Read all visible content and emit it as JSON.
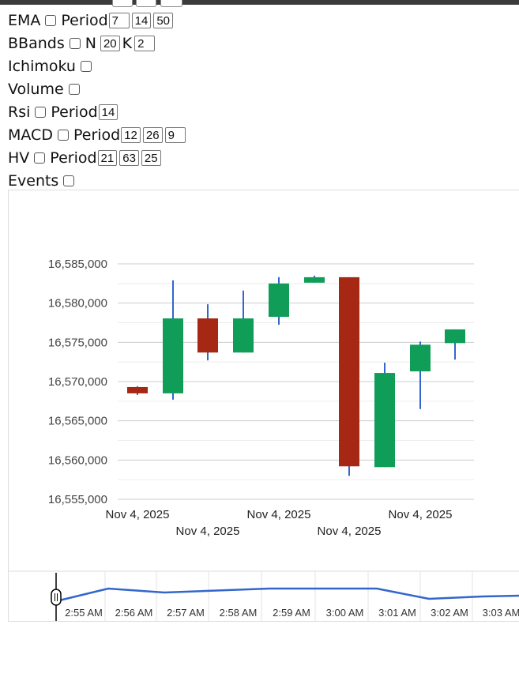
{
  "controls": [
    {
      "label": "EMA",
      "param_label": "Period",
      "values": [
        "7",
        "14",
        "50"
      ]
    },
    {
      "label": "BBands",
      "param_label": "N",
      "values": [
        "20"
      ],
      "param2_label": "K",
      "values2": [
        "2"
      ]
    },
    {
      "label": "Ichimoku"
    },
    {
      "label": "Volume"
    },
    {
      "label": "Rsi",
      "param_label": "Period",
      "values": [
        "14"
      ]
    },
    {
      "label": "MACD",
      "param_label": "Period",
      "values": [
        "12",
        "26",
        "9"
      ]
    },
    {
      "label": "HV",
      "param_label": "Period",
      "values": [
        "21",
        "63",
        "25"
      ]
    },
    {
      "label": "Events"
    }
  ],
  "chart_data": {
    "type": "candlestick",
    "ylim": [
      16555000,
      16585000
    ],
    "y_ticks": [
      "16,585,000",
      "16,580,000",
      "16,575,000",
      "16,570,000",
      "16,565,000",
      "16,560,000",
      "16,555,000"
    ],
    "x_tick_labels": [
      "Nov 4, 2025",
      "Nov 4, 2025",
      "Nov 4, 2025",
      "Nov 4, 2025",
      "Nov 4, 2025"
    ],
    "colors": {
      "up": "#0f9d58",
      "down": "#a52714",
      "wick": "#3366cc"
    },
    "candles": [
      {
        "o": 16569300,
        "h": 16569400,
        "l": 16568300,
        "c": 16568500
      },
      {
        "o": 16568500,
        "h": 16582900,
        "l": 16567700,
        "c": 16578050
      },
      {
        "o": 16578050,
        "h": 16579850,
        "l": 16572700,
        "c": 16573700
      },
      {
        "o": 16573700,
        "h": 16581600,
        "l": 16573700,
        "c": 16578050
      },
      {
        "o": 16578250,
        "h": 16583300,
        "l": 16577250,
        "c": 16582500
      },
      {
        "o": 16582600,
        "h": 16583500,
        "l": 16582600,
        "c": 16583300
      },
      {
        "o": 16583300,
        "h": 16583300,
        "l": 16558000,
        "c": 16559200
      },
      {
        "o": 16559100,
        "h": 16572400,
        "l": 16559100,
        "c": 16571100
      },
      {
        "o": 16571300,
        "h": 16575100,
        "l": 16566500,
        "c": 16574700
      },
      {
        "o": 16574900,
        "h": 16576650,
        "l": 16572800,
        "c": 16576650
      }
    ]
  },
  "navigator": {
    "time_labels": [
      "2:55 AM",
      "2:56 AM",
      "2:57 AM",
      "2:58 AM",
      "2:59 AM",
      "3:00 AM",
      "3:01 AM",
      "3:02 AM",
      "3:03 AM"
    ]
  }
}
